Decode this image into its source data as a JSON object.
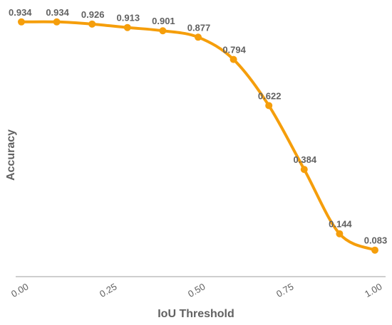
{
  "chart_data": {
    "type": "line",
    "title": "",
    "xlabel": "IoU Threshold",
    "ylabel": "Accuracy",
    "x": [
      0.0,
      0.1,
      0.2,
      0.3,
      0.4,
      0.5,
      0.6,
      0.7,
      0.8,
      0.9,
      1.0
    ],
    "series": [
      {
        "values": [
          0.934,
          0.934,
          0.926,
          0.913,
          0.901,
          0.877,
          0.794,
          0.622,
          0.384,
          0.144,
          0.083
        ],
        "labels": [
          "0.934",
          "0.934",
          "0.926",
          "0.913",
          "0.901",
          "0.877",
          "0.794",
          "0.622",
          "0.384",
          "0.144",
          "0.083"
        ],
        "color": "#F59E0B"
      }
    ],
    "xticks": [
      0.0,
      0.25,
      0.5,
      0.75,
      1.0
    ],
    "xtick_labels": [
      "0.00",
      "0.25",
      "0.50",
      "0.75",
      "1.00"
    ],
    "xlim": [
      0.0,
      1.0
    ],
    "ylim": [
      0.0,
      0.96
    ],
    "grid": false,
    "legend": "none"
  }
}
